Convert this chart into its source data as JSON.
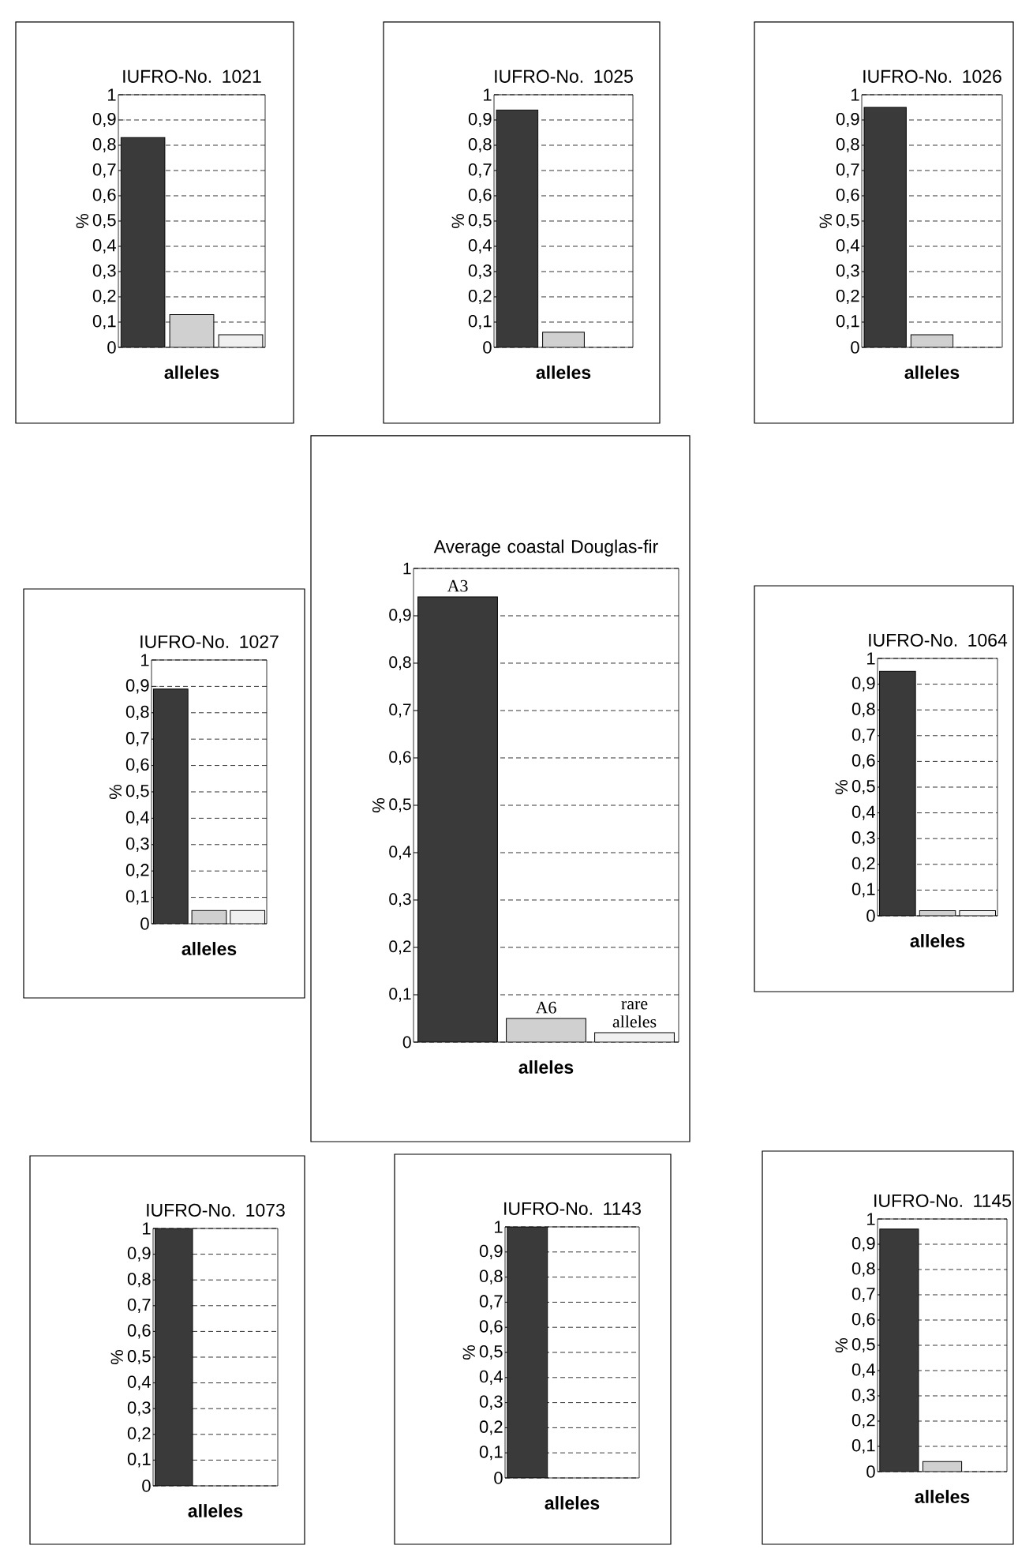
{
  "chart_data": [
    {
      "type": "bar",
      "title": "IUFRO-No. 1021",
      "xlabel": "alleles",
      "ylabel": "%",
      "categories": [
        null,
        null,
        null
      ],
      "values": [
        0.83,
        0.13,
        0.05
      ],
      "colors": [
        "#3a3a3a",
        "#d0d0d0",
        "#f0f0f0"
      ],
      "ylim": [
        0,
        1
      ],
      "yticks": [
        0,
        {
          "value": 0.1,
          "label": "0,1"
        },
        {
          "value": 0.2,
          "label": "0,2"
        },
        {
          "value": 0.3,
          "label": "0,3"
        },
        {
          "value": 0.4,
          "label": "0,4"
        },
        {
          "value": 0.5,
          "label": "0,5"
        },
        {
          "value": 0.6,
          "label": "0,6"
        },
        {
          "value": 0.7,
          "label": "0,7"
        },
        {
          "value": 0.8,
          "label": "0,8"
        },
        {
          "value": 0.9,
          "label": "0,9"
        },
        1
      ],
      "grid": "y"
    },
    {
      "type": "bar",
      "title": "IUFRO-No. 1025",
      "xlabel": "alleles",
      "ylabel": "%",
      "categories": [
        null,
        null,
        null
      ],
      "values": [
        0.94,
        0.06,
        null
      ],
      "colors": [
        "#3a3a3a",
        "#d0d0d0",
        "#f0f0f0"
      ],
      "ylim": [
        0,
        1
      ],
      "yticks": [
        0,
        {
          "value": 0.1,
          "label": "0,1"
        },
        {
          "value": 0.2,
          "label": "0,2"
        },
        {
          "value": 0.3,
          "label": "0,3"
        },
        {
          "value": 0.4,
          "label": "0,4"
        },
        {
          "value": 0.5,
          "label": "0,5"
        },
        {
          "value": 0.6,
          "label": "0,6"
        },
        {
          "value": 0.7,
          "label": "0,7"
        },
        {
          "value": 0.8,
          "label": "0,8"
        },
        {
          "value": 0.9,
          "label": "0,9"
        },
        1
      ],
      "grid": "y"
    },
    {
      "type": "bar",
      "title": "IUFRO-No. 1026",
      "xlabel": "alleles",
      "ylabel": "%",
      "categories": [
        null,
        null,
        null
      ],
      "values": [
        0.95,
        0.05,
        null
      ],
      "colors": [
        "#3a3a3a",
        "#d0d0d0",
        "#f0f0f0"
      ],
      "ylim": [
        0,
        1
      ],
      "yticks": [
        0,
        {
          "value": 0.1,
          "label": "0,1"
        },
        {
          "value": 0.2,
          "label": "0,2"
        },
        {
          "value": 0.3,
          "label": "0,3"
        },
        {
          "value": 0.4,
          "label": "0,4"
        },
        {
          "value": 0.5,
          "label": "0,5"
        },
        {
          "value": 0.6,
          "label": "0,6"
        },
        {
          "value": 0.7,
          "label": "0,7"
        },
        {
          "value": 0.8,
          "label": "0,8"
        },
        {
          "value": 0.9,
          "label": "0,9"
        },
        1
      ],
      "grid": "y"
    },
    {
      "type": "bar",
      "title": "IUFRO-No. 1027",
      "xlabel": "alleles",
      "ylabel": "%",
      "categories": [
        null,
        null,
        null
      ],
      "values": [
        0.89,
        0.05,
        0.05
      ],
      "colors": [
        "#3a3a3a",
        "#d0d0d0",
        "#f0f0f0"
      ],
      "ylim": [
        0,
        1
      ],
      "yticks": [
        0,
        {
          "value": 0.1,
          "label": "0,1"
        },
        {
          "value": 0.2,
          "label": "0,2"
        },
        {
          "value": 0.3,
          "label": "0,3"
        },
        {
          "value": 0.4,
          "label": "0,4"
        },
        {
          "value": 0.5,
          "label": "0,5"
        },
        {
          "value": 0.6,
          "label": "0,6"
        },
        {
          "value": 0.7,
          "label": "0,7"
        },
        {
          "value": 0.8,
          "label": "0,8"
        },
        {
          "value": 0.9,
          "label": "0,9"
        },
        1
      ],
      "grid": "y"
    },
    {
      "type": "bar",
      "title": "Average coastal Douglas-fir",
      "xlabel": "alleles",
      "ylabel": "%",
      "categories": [
        null,
        null,
        null
      ],
      "values": [
        0.94,
        0.05,
        0.02
      ],
      "colors": [
        "#3a3a3a",
        "#d0d0d0",
        "#f0f0f0"
      ],
      "ylim": [
        0,
        1
      ],
      "yticks": [
        0,
        {
          "value": 0.1,
          "label": "0,1"
        },
        {
          "value": 0.2,
          "label": "0,2"
        },
        {
          "value": 0.3,
          "label": "0,3"
        },
        {
          "value": 0.4,
          "label": "0,4"
        },
        {
          "value": 0.5,
          "label": "0,5"
        },
        {
          "value": 0.6,
          "label": "0,6"
        },
        {
          "value": 0.7,
          "label": "0,7"
        },
        {
          "value": 0.8,
          "label": "0,8"
        },
        {
          "value": 0.9,
          "label": "0,9"
        },
        1
      ],
      "grid": "y",
      "annotations": [
        {
          "text": "A3",
          "y": 0.94
        },
        {
          "text": "A6",
          "y": 0.05
        },
        {
          "text": "rare alleles",
          "y": 0.02
        }
      ]
    },
    {
      "type": "bar",
      "title": "IUFRO-No. 1064",
      "xlabel": "alleles",
      "ylabel": "%",
      "categories": [
        null,
        null,
        null
      ],
      "values": [
        0.95,
        0.02,
        0.02
      ],
      "colors": [
        "#3a3a3a",
        "#d0d0d0",
        "#f0f0f0"
      ],
      "ylim": [
        0,
        1
      ],
      "yticks": [
        0,
        {
          "value": 0.1,
          "label": "0,1"
        },
        {
          "value": 0.2,
          "label": "0,2"
        },
        {
          "value": 0.3,
          "label": "0,3"
        },
        {
          "value": 0.4,
          "label": "0,4"
        },
        {
          "value": 0.5,
          "label": "0,5"
        },
        {
          "value": 0.6,
          "label": "0,6"
        },
        {
          "value": 0.7,
          "label": "0,7"
        },
        {
          "value": 0.8,
          "label": "0,8"
        },
        {
          "value": 0.9,
          "label": "0,9"
        },
        1
      ],
      "grid": "y"
    },
    {
      "type": "bar",
      "title": "IUFRO-No. 1073",
      "xlabel": "alleles",
      "ylabel": "%",
      "categories": [
        null,
        null,
        null
      ],
      "values": [
        1,
        null,
        null
      ],
      "colors": [
        "#3a3a3a",
        "#d0d0d0",
        "#f0f0f0"
      ],
      "ylim": [
        0,
        1
      ],
      "yticks": [
        0,
        {
          "value": 0.1,
          "label": "0,1"
        },
        {
          "value": 0.2,
          "label": "0,2"
        },
        {
          "value": 0.3,
          "label": "0,3"
        },
        {
          "value": 0.4,
          "label": "0,4"
        },
        {
          "value": 0.5,
          "label": "0,5"
        },
        {
          "value": 0.6,
          "label": "0,6"
        },
        {
          "value": 0.7,
          "label": "0,7"
        },
        {
          "value": 0.8,
          "label": "0,8"
        },
        {
          "value": 0.9,
          "label": "0,9"
        },
        1
      ],
      "grid": "y"
    },
    {
      "type": "bar",
      "title": "IUFRO-No. 1143",
      "xlabel": "alleles",
      "ylabel": "%",
      "categories": [
        null,
        null,
        null
      ],
      "values": [
        1,
        null,
        null
      ],
      "colors": [
        "#3a3a3a",
        "#d0d0d0",
        "#f0f0f0"
      ],
      "ylim": [
        0,
        1
      ],
      "yticks": [
        0,
        {
          "value": 0.1,
          "label": "0,1"
        },
        {
          "value": 0.2,
          "label": "0,2"
        },
        {
          "value": 0.3,
          "label": "0,3"
        },
        {
          "value": 0.4,
          "label": "0,4"
        },
        {
          "value": 0.5,
          "label": "0,5"
        },
        {
          "value": 0.6,
          "label": "0,6"
        },
        {
          "value": 0.7,
          "label": "0,7"
        },
        {
          "value": 0.8,
          "label": "0,8"
        },
        {
          "value": 0.9,
          "label": "0,9"
        },
        1
      ],
      "grid": "y"
    },
    {
      "type": "bar",
      "title": "IUFRO-No. 1145",
      "xlabel": "alleles",
      "ylabel": "%",
      "categories": [
        null,
        null,
        null
      ],
      "values": [
        0.96,
        0.04,
        null
      ],
      "colors": [
        "#3a3a3a",
        "#d0d0d0",
        "#f0f0f0"
      ],
      "ylim": [
        0,
        1
      ],
      "yticks": [
        0,
        {
          "value": 0.1,
          "label": "0,1"
        },
        {
          "value": 0.2,
          "label": "0,2"
        },
        {
          "value": 0.3,
          "label": "0,3"
        },
        {
          "value": 0.4,
          "label": "0,4"
        },
        {
          "value": 0.5,
          "label": "0,5"
        },
        {
          "value": 0.6,
          "label": "0,6"
        },
        {
          "value": 0.7,
          "label": "0,7"
        },
        {
          "value": 0.8,
          "label": "0,8"
        },
        {
          "value": 0.9,
          "label": "0,9"
        },
        1
      ],
      "grid": "y"
    }
  ]
}
